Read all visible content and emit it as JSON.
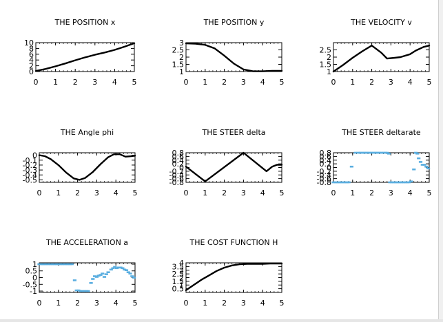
{
  "chart_data": [
    {
      "type": "line",
      "title": "THE POSITION x",
      "xlim": [
        0,
        5
      ],
      "ylim": [
        0,
        10
      ],
      "xticks": [
        "0",
        "1",
        "2",
        "3",
        "4",
        "5"
      ],
      "yticks": [
        "0",
        "2",
        "4",
        "6",
        "8",
        "10"
      ],
      "series": [
        {
          "color": "#000000",
          "x": [
            0,
            0.5,
            1,
            1.5,
            2,
            2.5,
            3,
            3.5,
            4,
            4.5,
            5
          ],
          "y": [
            0.2,
            0.9,
            1.8,
            2.8,
            3.9,
            4.9,
            5.8,
            6.6,
            7.5,
            8.6,
            9.8
          ]
        }
      ]
    },
    {
      "type": "line",
      "title": "THE POSITION y",
      "xlim": [
        0,
        5
      ],
      "ylim": [
        1,
        3
      ],
      "xticks": [
        "0",
        "1",
        "2",
        "3",
        "4",
        "5"
      ],
      "yticks": [
        "1",
        "1.5",
        "2",
        "2.5",
        "3"
      ],
      "series": [
        {
          "color": "#000000",
          "x": [
            0,
            0.5,
            1,
            1.5,
            2,
            2.5,
            3,
            3.5,
            4,
            4.5,
            5
          ],
          "y": [
            2.95,
            2.93,
            2.85,
            2.6,
            2.1,
            1.55,
            1.15,
            1.02,
            1.02,
            1.05,
            1.05
          ]
        }
      ]
    },
    {
      "type": "line",
      "title": "THE VELOCITY v",
      "xlim": [
        0,
        5
      ],
      "ylim": [
        1,
        3
      ],
      "xticks": [
        "0",
        "1",
        "2",
        "3",
        "4",
        "5"
      ],
      "yticks": [
        "1",
        "1.5",
        "2",
        "2.5"
      ],
      "series": [
        {
          "color": "#000000",
          "x": [
            0,
            0.5,
            1,
            1.5,
            2,
            2.5,
            2.8,
            3.2,
            3.5,
            4,
            4.3,
            4.7,
            5
          ],
          "y": [
            1.0,
            1.45,
            1.95,
            2.4,
            2.8,
            2.3,
            1.9,
            1.95,
            2.0,
            2.2,
            2.45,
            2.7,
            2.8
          ]
        }
      ]
    },
    {
      "type": "line",
      "title": "THE Angle phi",
      "xlim": [
        0,
        5
      ],
      "ylim": [
        -0.55,
        0.05
      ],
      "xticks": [
        "0",
        "1",
        "2",
        "3",
        "4",
        "5"
      ],
      "yticks": [
        "-0.5",
        "-0.4",
        "-0.3",
        "-0.2",
        "-0.1",
        "0"
      ],
      "series": [
        {
          "color": "#000000",
          "x": [
            0,
            0.3,
            0.6,
            1,
            1.4,
            1.8,
            2.1,
            2.4,
            2.8,
            3.2,
            3.6,
            3.9,
            4.2,
            4.5,
            4.8,
            5
          ],
          "y": [
            0,
            -0.02,
            -0.08,
            -0.2,
            -0.35,
            -0.47,
            -0.5,
            -0.46,
            -0.34,
            -0.18,
            -0.04,
            0.02,
            0.02,
            -0.03,
            -0.02,
            -0.01
          ]
        }
      ]
    },
    {
      "type": "line",
      "title": "THE STEER delta",
      "xlim": [
        0,
        5
      ],
      "ylim": [
        -0.8,
        0.8
      ],
      "xticks": [
        "0",
        "1",
        "2",
        "3",
        "4",
        "5"
      ],
      "yticks": [
        "-0.8",
        "-0.6",
        "-0.4",
        "-0.2",
        "0",
        "0.2",
        "0.4",
        "0.6",
        "0.8"
      ],
      "series": [
        {
          "color": "#000000",
          "x": [
            0,
            1,
            3,
            4.2,
            4.5,
            4.75,
            5
          ],
          "y": [
            0.05,
            -0.75,
            0.8,
            -0.2,
            0.05,
            0.15,
            0.15
          ]
        }
      ]
    },
    {
      "type": "scatter",
      "title": "THE STEER deltarate",
      "xlim": [
        0,
        5
      ],
      "ylim": [
        -0.8,
        0.8
      ],
      "xticks": [
        "0",
        "1",
        "2",
        "3",
        "4",
        "5"
      ],
      "yticks": [
        "-0.8",
        "-0.6",
        "-0.4",
        "-0.2",
        "0",
        "0.2",
        "0.4",
        "0.6",
        "0.8"
      ],
      "series": [
        {
          "color": "#5aaee0",
          "x": [
            0,
            0.1,
            0.2,
            0.3,
            0.4,
            0.5,
            0.6,
            0.7,
            0.8,
            0.95,
            1.15,
            1.3,
            1.4,
            1.5,
            1.6,
            1.7,
            1.8,
            1.9,
            2.0,
            2.1,
            2.2,
            2.3,
            2.4,
            2.5,
            2.6,
            2.7,
            2.8,
            2.9,
            2.95,
            3.05,
            3.15,
            3.25,
            3.35,
            3.45,
            3.55,
            3.65,
            3.75,
            3.85,
            3.95,
            4.05,
            4.2,
            4.3,
            4.38,
            4.45,
            4.55,
            4.65,
            4.75,
            4.85,
            4.95
          ],
          "y": [
            -0.8,
            -0.8,
            -0.8,
            -0.8,
            -0.8,
            -0.8,
            -0.8,
            -0.8,
            -0.8,
            0.05,
            0.8,
            0.8,
            0.8,
            0.8,
            0.8,
            0.8,
            0.8,
            0.8,
            0.8,
            0.8,
            0.8,
            0.8,
            0.8,
            0.8,
            0.8,
            0.8,
            0.8,
            0.75,
            -0.8,
            -0.8,
            -0.8,
            -0.8,
            -0.8,
            -0.8,
            -0.8,
            -0.8,
            -0.8,
            -0.8,
            -0.8,
            -0.75,
            -0.1,
            0.8,
            0.75,
            0.5,
            0.3,
            0.15,
            0.15,
            0.05,
            -0.05
          ]
        }
      ]
    },
    {
      "type": "scatter",
      "title": "THE ACCELERATION a",
      "xlim": [
        0,
        5
      ],
      "ylim": [
        -1.1,
        1.1
      ],
      "xticks": [
        "0",
        "1",
        "2",
        "3",
        "4",
        "5"
      ],
      "yticks": [
        "-1",
        "-0.5",
        "0",
        "0.5",
        "1"
      ],
      "series": [
        {
          "color": "#5aaee0",
          "x": [
            0,
            0.1,
            0.2,
            0.3,
            0.4,
            0.5,
            0.6,
            0.7,
            0.8,
            0.9,
            1.0,
            1.1,
            1.2,
            1.3,
            1.4,
            1.5,
            1.6,
            1.7,
            1.85,
            1.95,
            2.05,
            2.15,
            2.25,
            2.35,
            2.45,
            2.55,
            2.7,
            2.8,
            2.9,
            3.0,
            3.1,
            3.2,
            3.3,
            3.4,
            3.5,
            3.6,
            3.75,
            3.85,
            3.95,
            4.05,
            4.15,
            4.25,
            4.35,
            4.45,
            4.55,
            4.65,
            4.75,
            4.85,
            4.95
          ],
          "y": [
            1,
            1,
            1,
            1,
            1,
            1,
            1,
            1,
            1,
            1,
            1,
            1,
            1,
            1,
            1,
            1,
            1,
            1,
            -0.2,
            -0.95,
            -0.95,
            -1,
            -1,
            -1,
            -1,
            -1,
            -0.4,
            -0.1,
            0.1,
            0.05,
            0.15,
            0.2,
            0.3,
            0.05,
            0.25,
            0.4,
            0.6,
            0.7,
            0.8,
            0.7,
            0.75,
            0.75,
            0.7,
            0.6,
            0.55,
            0.4,
            0.3,
            0.1,
            0.0
          ]
        }
      ]
    },
    {
      "type": "line",
      "title": "THE COST FUNCTION H",
      "xlim": [
        0,
        5
      ],
      "ylim": [
        0,
        4
      ],
      "xticks": [
        "0",
        "1",
        "2",
        "3",
        "4",
        "5"
      ],
      "yticks": [
        "0.5",
        "1",
        "1.5",
        "2",
        "2.5",
        "3",
        "3.5",
        "4"
      ],
      "series": [
        {
          "color": "#000000",
          "x": [
            0,
            0.4,
            0.8,
            1.2,
            1.6,
            2.0,
            2.4,
            2.8,
            3.2,
            3.6,
            4.0,
            4.4,
            4.8,
            5
          ],
          "y": [
            0.3,
            1.0,
            1.7,
            2.3,
            2.9,
            3.35,
            3.65,
            3.8,
            3.85,
            3.85,
            3.85,
            3.9,
            3.9,
            3.9
          ]
        }
      ]
    }
  ]
}
